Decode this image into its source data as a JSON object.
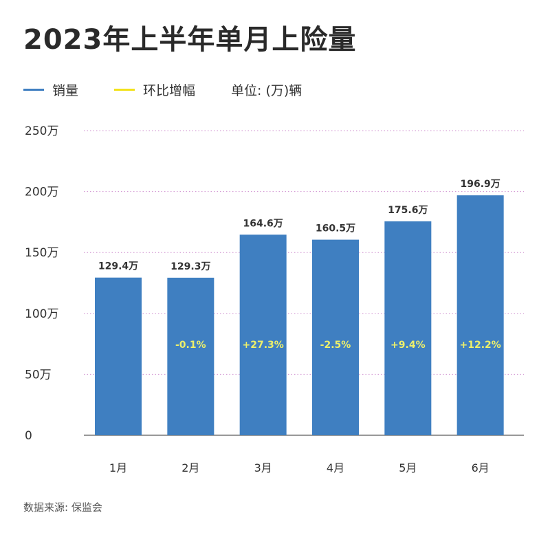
{
  "title": "2023年上半年单月上险量",
  "legend": {
    "items": [
      {
        "label": "销量",
        "color": "#3f7fc1"
      },
      {
        "label": "环比增幅",
        "color": "#f2e21a"
      }
    ],
    "unit": "单位: (万)辆"
  },
  "source": "数据来源: 保监会",
  "colors": {
    "bar": "#3f7fc1",
    "pct_text": "#eef06a",
    "grid": "#cf8fcf",
    "axis": "#777777"
  },
  "chart_data": {
    "type": "bar",
    "title": "2023年上半年单月上险量",
    "categories": [
      "1月",
      "2月",
      "3月",
      "4月",
      "5月",
      "6月"
    ],
    "series": [
      {
        "name": "销量",
        "values": [
          129.4,
          129.3,
          164.6,
          160.5,
          175.6,
          196.9
        ]
      }
    ],
    "value_labels": [
      "129.4万",
      "129.3万",
      "164.6万",
      "160.5万",
      "175.6万",
      "196.9万"
    ],
    "mom_growth_labels": [
      "",
      "-0.1%",
      "+27.3%",
      "-2.5%",
      "+9.4%",
      "+12.2%"
    ],
    "yticks": [
      0,
      50,
      100,
      150,
      200,
      250
    ],
    "ytick_labels": [
      "0",
      "50万",
      "100万",
      "150万",
      "200万",
      "250万"
    ],
    "ylim": [
      0,
      250
    ],
    "grid": true,
    "legend_position": "top-left"
  }
}
